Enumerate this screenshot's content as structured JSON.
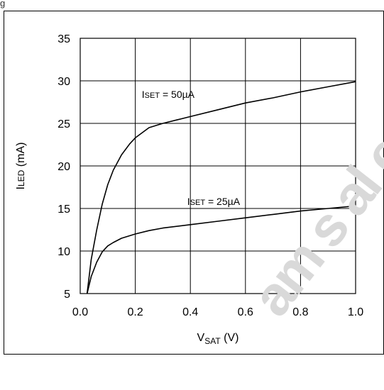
{
  "corner_text": "g",
  "watermark_text": "am s al e",
  "chart_data": {
    "type": "line",
    "title": "",
    "xlabel_main": "V",
    "xlabel_sub": "SAT",
    "xlabel_unit": " (V)",
    "ylabel_main": "I",
    "ylabel_sub": "LED",
    "ylabel_unit": " (mA)",
    "xlim": [
      0.0,
      1.0
    ],
    "ylim": [
      5,
      35
    ],
    "xticks": [
      0.0,
      0.2,
      0.4,
      0.6,
      0.8,
      1.0
    ],
    "xtick_labels": [
      "0.0",
      "0.2",
      "0.4",
      "0.6",
      "0.8",
      "1.0"
    ],
    "yticks": [
      5,
      10,
      15,
      20,
      25,
      30,
      35
    ],
    "ytick_labels": [
      "5",
      "10",
      "15",
      "20",
      "25",
      "30",
      "35"
    ],
    "grid": true,
    "series": [
      {
        "label_main": "I",
        "label_sub": "SET",
        "label_rest": " = 50µA",
        "color": "#000000",
        "x": [
          0.025,
          0.04,
          0.06,
          0.08,
          0.1,
          0.12,
          0.15,
          0.18,
          0.2,
          0.25,
          0.3,
          0.35,
          0.4,
          0.5,
          0.6,
          0.7,
          0.8,
          0.9,
          1.0
        ],
        "y": [
          5.0,
          9.0,
          12.5,
          15.5,
          17.8,
          19.5,
          21.3,
          22.6,
          23.3,
          24.5,
          25.0,
          25.4,
          25.8,
          26.6,
          27.4,
          28.0,
          28.7,
          29.3,
          29.9
        ]
      },
      {
        "label_main": "I",
        "label_sub": "SET",
        "label_rest": " = 25µA",
        "color": "#000000",
        "x": [
          0.025,
          0.04,
          0.06,
          0.08,
          0.1,
          0.12,
          0.15,
          0.2,
          0.25,
          0.3,
          0.4,
          0.5,
          0.6,
          0.7,
          0.8,
          0.9,
          1.0
        ],
        "y": [
          5.0,
          7.0,
          8.7,
          9.9,
          10.6,
          11.0,
          11.5,
          12.0,
          12.4,
          12.7,
          13.1,
          13.5,
          13.9,
          14.3,
          14.7,
          15.0,
          15.3
        ]
      }
    ]
  }
}
